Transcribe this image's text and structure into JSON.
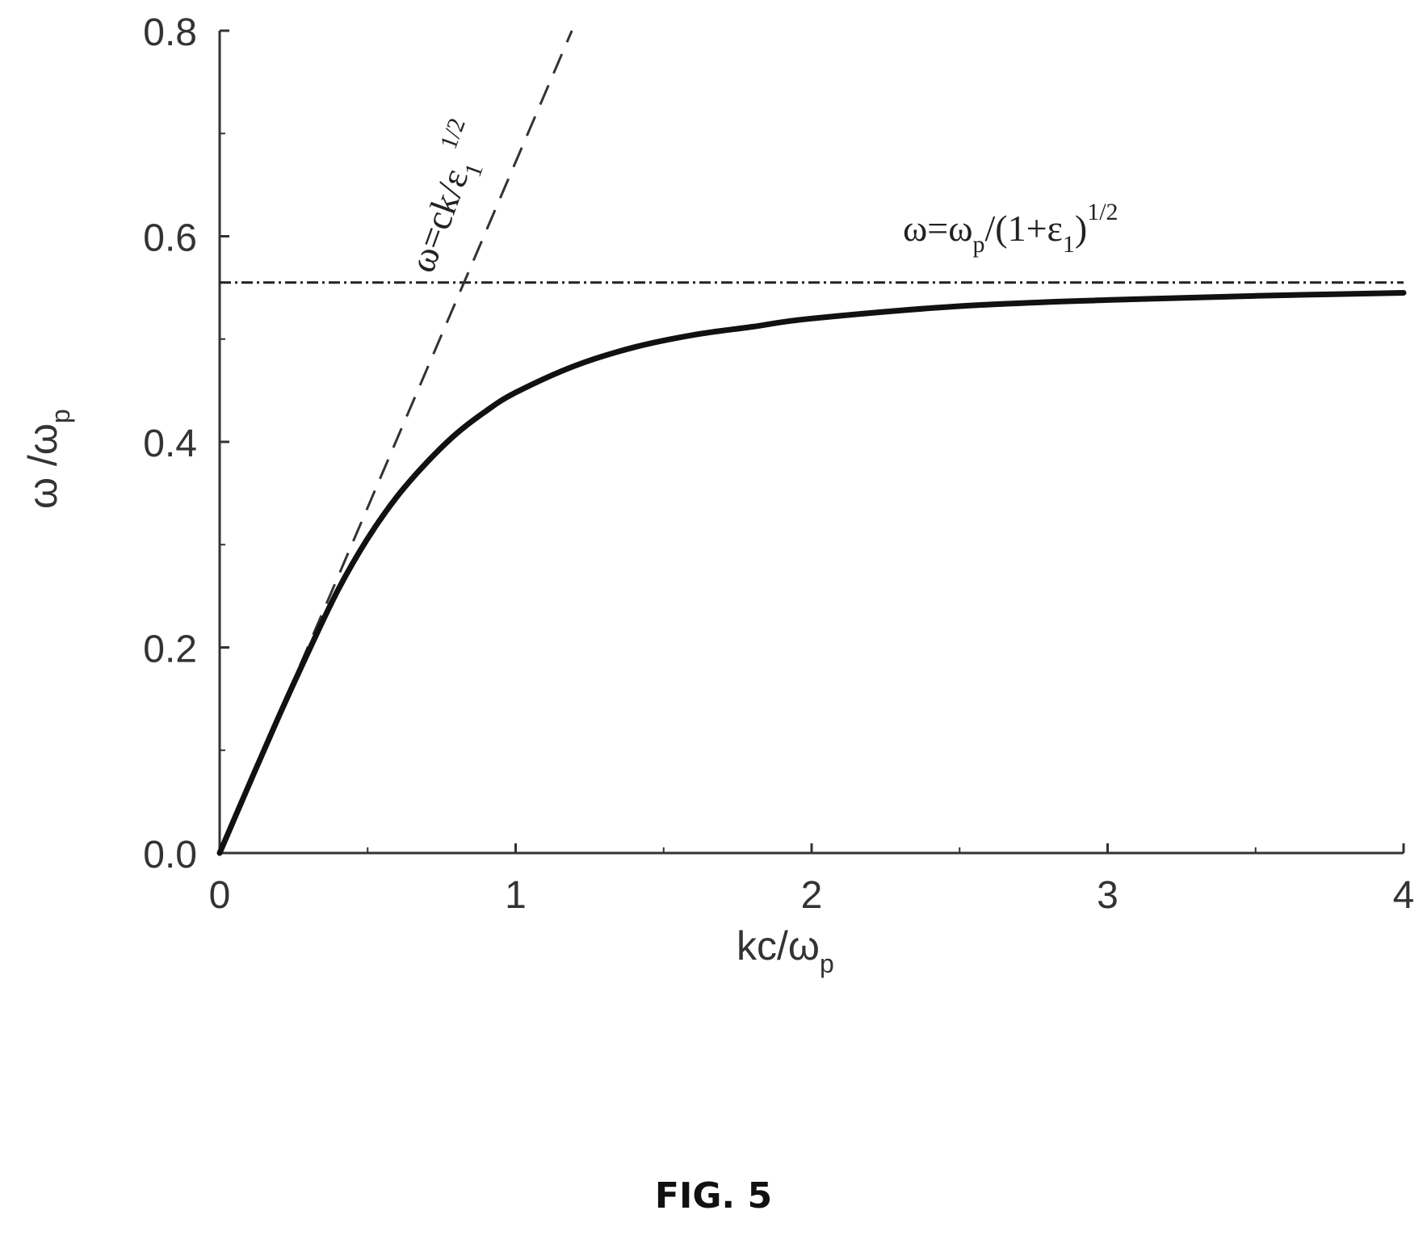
{
  "chart_data": {
    "type": "line",
    "xlabel": {
      "main": "kc/ω",
      "sub": "p"
    },
    "ylabel": {
      "main": "ω /ω",
      "sub": "p"
    },
    "xlim": [
      0,
      4
    ],
    "ylim": [
      0,
      0.8
    ],
    "x_ticks": [
      "0",
      "1",
      "2",
      "3",
      "4"
    ],
    "y_ticks": [
      "0.0",
      "0.2",
      "0.4",
      "0.6",
      "0.8"
    ],
    "grid": false,
    "series": [
      {
        "style": "solid",
        "x": [
          0,
          0.1,
          0.2,
          0.3,
          0.4,
          0.5,
          0.6,
          0.7,
          0.8,
          0.9,
          1.0,
          1.2,
          1.4,
          1.6,
          1.8,
          2.0,
          2.5,
          3.0,
          3.5,
          4.0
        ],
        "y": [
          0,
          0.067,
          0.133,
          0.196,
          0.256,
          0.306,
          0.347,
          0.38,
          0.408,
          0.43,
          0.448,
          0.474,
          0.492,
          0.504,
          0.512,
          0.52,
          0.532,
          0.538,
          0.542,
          0.545
        ]
      },
      {
        "style": "dashed",
        "x": [
          0,
          1.19
        ],
        "y": [
          0,
          0.8
        ]
      },
      {
        "style": "dash-dot",
        "x": [
          0,
          4
        ],
        "y": [
          0.555,
          0.555
        ]
      }
    ],
    "annotations": {
      "light_line": {
        "lhs": "ω=ck/ε",
        "sub": "1",
        "sup": "1/2"
      },
      "asymptote": {
        "lhs": "ω=ω",
        "sub1": "p",
        "mid": "/(1+ε",
        "sub2": "1",
        "rhs": ")",
        "sup": "1/2"
      }
    }
  },
  "caption": "FIG. 5",
  "colors": {
    "ink": "#222222",
    "axis": "#333333",
    "background": "#ffffff"
  }
}
